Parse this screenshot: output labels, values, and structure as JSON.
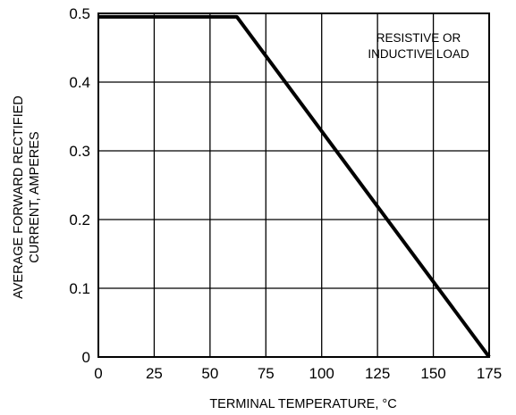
{
  "chart_data": {
    "type": "line",
    "title": "",
    "xlabel": "TERMINAL TEMPERATURE, °C",
    "ylabel_lines": [
      "AVERAGE FORWARD RECTIFIED",
      "CURRENT, AMPERES"
    ],
    "xlim": [
      0,
      175
    ],
    "ylim": [
      0,
      0.5
    ],
    "x_ticks": [
      "0",
      "25",
      "50",
      "75",
      "100",
      "125",
      "150",
      "175"
    ],
    "y_ticks": [
      "0",
      "0.1",
      "0.2",
      "0.3",
      "0.4",
      "0.5"
    ],
    "grid": true,
    "legend": "none",
    "annotation_lines": [
      "RESISTIVE OR",
      "INDUCTIVE LOAD"
    ],
    "series": [
      {
        "x": [
          0,
          62,
          175
        ],
        "y": [
          0.495,
          0.495,
          0
        ]
      }
    ],
    "colors": {
      "line": "#000000",
      "grid": "#000000"
    }
  }
}
